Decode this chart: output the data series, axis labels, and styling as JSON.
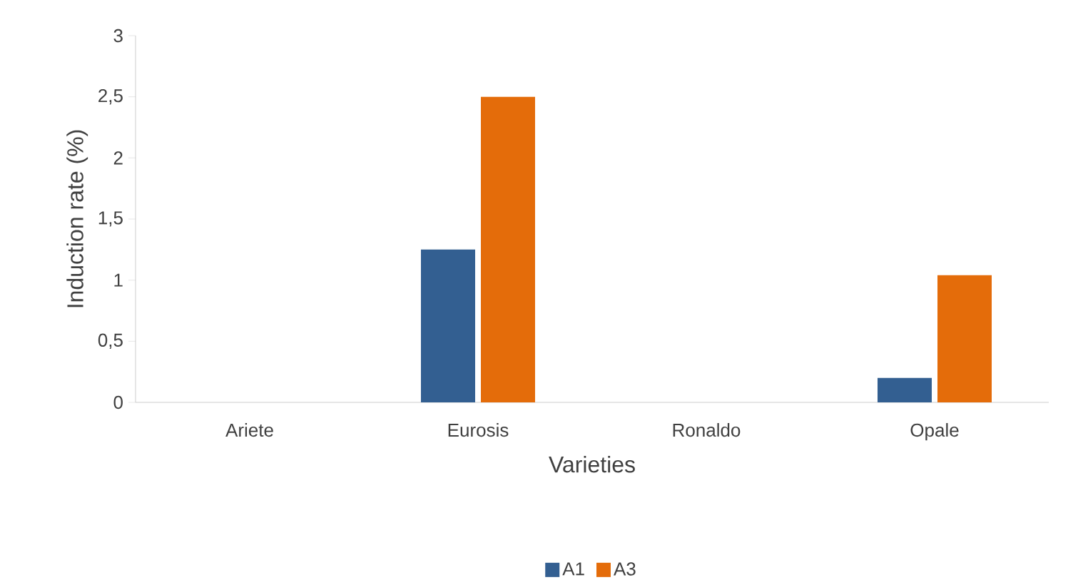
{
  "chart_data": {
    "type": "bar",
    "xlabel": "Varieties",
    "ylabel": "Induction rate (%)",
    "categories": [
      "Ariete",
      "Eurosis",
      "Ronaldo",
      "Opale"
    ],
    "series": [
      {
        "name": "A1",
        "color": "#335f91",
        "values": [
          0,
          1.25,
          0,
          0.2
        ]
      },
      {
        "name": "A3",
        "color": "#e46c0a",
        "values": [
          0,
          2.5,
          0,
          1.04
        ]
      }
    ],
    "ylim": [
      0,
      3
    ],
    "yticks": [
      0,
      {
        "value": 0.5,
        "label": "0,5"
      },
      1,
      {
        "value": 1.5,
        "label": "1,5"
      },
      2,
      {
        "value": 2.5,
        "label": "2,5"
      },
      3
    ],
    "legend": "bottom"
  }
}
